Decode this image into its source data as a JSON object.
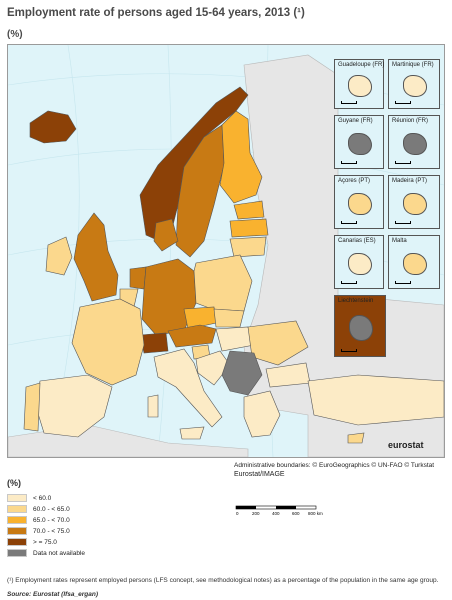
{
  "title": "Employment rate of persons aged 15-64 years, 2013 (¹)",
  "subtitle": "(%)",
  "insets": [
    {
      "label": "Guadeloupe (FR)",
      "category": "lt60"
    },
    {
      "label": "Martinique (FR)",
      "category": "lt60"
    },
    {
      "label": "Guyane (FR)",
      "category": "na"
    },
    {
      "label": "Réunion (FR)",
      "category": "na"
    },
    {
      "label": "Açores (PT)",
      "category": "60to65"
    },
    {
      "label": "Madeira (PT)",
      "category": "60to65"
    },
    {
      "label": "Canarias (ES)",
      "category": "lt60"
    },
    {
      "label": "Malta",
      "category": "60to65"
    },
    {
      "label": "Liechtenstein",
      "category": "na"
    }
  ],
  "legend": {
    "title": "(%)",
    "items": [
      {
        "label": "< 60.0",
        "color": "#fcebc6"
      },
      {
        "label": "60.0 - < 65.0",
        "color": "#fbd88d"
      },
      {
        "label": "65.0 - < 70.0",
        "color": "#f9b22f"
      },
      {
        "label": "70.0 - < 75.0",
        "color": "#c87a14"
      },
      {
        "label": "> = 75.0",
        "color": "#8c4107"
      },
      {
        "label": "Data not available",
        "color": "#7a7a7a"
      }
    ]
  },
  "colors": {
    "lt60": "#fcebc6",
    "60to65": "#fbd88d",
    "65to70": "#f9b22f",
    "70to75": "#c87a14",
    "ge75": "#8c4107",
    "na": "#7a7a7a",
    "nonEU": "#e6e6e6",
    "sea": "#dff4f9"
  },
  "admin_boundaries": "Administrative boundaries: © EuroGeographics © UN-FAO © Turkstat",
  "eurostat_image": "Eurostat/IMAGE",
  "eurostat_logo": "eurostat",
  "scale_labels": [
    "0",
    "200",
    "400",
    "600",
    "800 km"
  ],
  "footnote": "(¹) Employment rates represent employed persons (LFS concept, see methodological notes) as a percentage of the population in the same age group.",
  "source": "Source: Eurostat (lfsa_ergan)"
}
